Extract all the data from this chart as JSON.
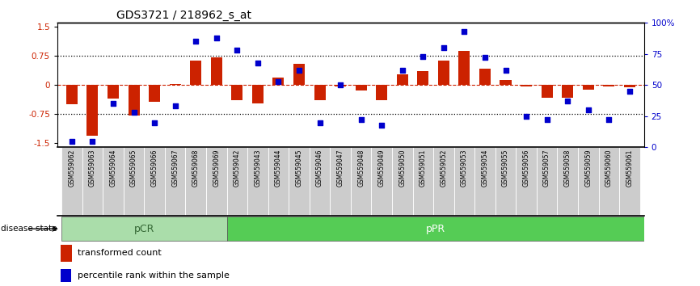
{
  "title": "GDS3721 / 218962_s_at",
  "samples": [
    "GSM559062",
    "GSM559063",
    "GSM559064",
    "GSM559065",
    "GSM559066",
    "GSM559067",
    "GSM559068",
    "GSM559069",
    "GSM559042",
    "GSM559043",
    "GSM559044",
    "GSM559045",
    "GSM559046",
    "GSM559047",
    "GSM559048",
    "GSM559049",
    "GSM559050",
    "GSM559051",
    "GSM559052",
    "GSM559053",
    "GSM559054",
    "GSM559055",
    "GSM559056",
    "GSM559057",
    "GSM559058",
    "GSM559059",
    "GSM559060",
    "GSM559061"
  ],
  "bar_values": [
    -0.5,
    -1.3,
    -0.35,
    -0.78,
    -0.42,
    0.02,
    0.62,
    0.72,
    -0.38,
    -0.48,
    0.2,
    0.55,
    -0.38,
    -0.04,
    -0.14,
    -0.38,
    0.28,
    0.35,
    0.62,
    0.88,
    0.42,
    0.14,
    -0.04,
    -0.33,
    -0.33,
    -0.12,
    -0.04,
    -0.05
  ],
  "dot_values": [
    5,
    5,
    35,
    28,
    20,
    33,
    85,
    88,
    78,
    68,
    53,
    62,
    20,
    50,
    22,
    18,
    62,
    73,
    80,
    93,
    72,
    62,
    25,
    22,
    37,
    30,
    22,
    45
  ],
  "pCR_count": 8,
  "pPR_count": 20,
  "bar_color": "#cc2200",
  "dot_color": "#0000cc",
  "pCR_color": "#aaddaa",
  "pPR_color": "#55cc55",
  "pCR_text_color": "#336633",
  "pPR_text_color": "#ffffff",
  "disease_state_label": "disease state",
  "ylim": [
    -1.6,
    1.6
  ],
  "yticks": [
    -1.5,
    -0.75,
    0.0,
    0.75,
    1.5
  ],
  "ytick_labels": [
    "-1.5",
    "-0.75",
    "0",
    "0.75",
    "1.5"
  ],
  "y2ticks_pct": [
    0,
    25,
    50,
    75,
    100
  ],
  "y2tick_labels": [
    "0",
    "25",
    "50",
    "75",
    "100%"
  ],
  "legend_bar_label": "transformed count",
  "legend_dot_label": "percentile rank within the sample"
}
